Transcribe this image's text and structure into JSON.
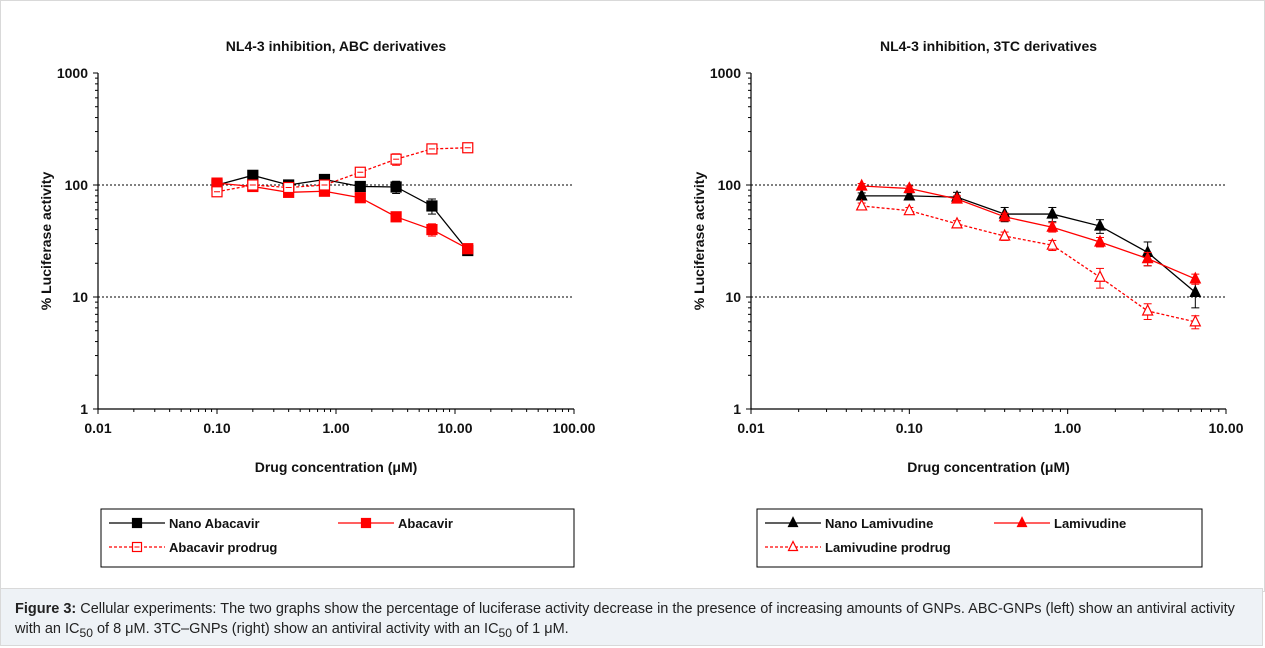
{
  "caption": {
    "label": "Figure 3:",
    "text1": " Cellular experiments: The two graphs show the percentage of luciferase activity decrease in the presence of increasing amounts of GNPs. ABC-GNPs (left) show an antiviral activity with an IC",
    "sub1": "50",
    "text2": " of 8 μM. 3TC–GNPs (right) show an antiviral activity with an IC",
    "sub2": "50",
    "text3": " of 1 μM."
  },
  "chart_data": [
    {
      "type": "line",
      "title": "NL4-3 inhibition, ABC derivatives",
      "xlabel": "Drug concentration (μM)",
      "ylabel": "% Luciferase activity",
      "xscale": "log",
      "yscale": "log",
      "xlim": [
        0.01,
        100
      ],
      "ylim": [
        1,
        1000
      ],
      "xticks": [
        "0.01",
        "0.10",
        "1.00",
        "10.00",
        "100.00"
      ],
      "yticks": [
        "1",
        "10",
        "100",
        "1000"
      ],
      "reference_lines_y": [
        10,
        100
      ],
      "legend_position": "bottom",
      "series": [
        {
          "name": "Nano Abacavir",
          "color": "#000000",
          "marker": "square-filled",
          "dashed": false,
          "x": [
            0.1,
            0.2,
            0.4,
            0.8,
            1.6,
            3.2,
            6.4,
            12.8
          ],
          "y": [
            100,
            122,
            100,
            112,
            97,
            96,
            65,
            26
          ],
          "err": [
            0,
            8,
            5,
            8,
            8,
            12,
            10,
            2
          ]
        },
        {
          "name": "Abacavir",
          "color": "#ff0000",
          "marker": "square-filled",
          "dashed": false,
          "x": [
            0.1,
            0.2,
            0.4,
            0.8,
            1.6,
            3.2,
            6.4,
            12.8
          ],
          "y": [
            104,
            97,
            86,
            88,
            77,
            52,
            40,
            27
          ],
          "err": [
            5,
            5,
            5,
            5,
            5,
            4,
            5,
            2
          ]
        },
        {
          "name": "Abacavir prodrug",
          "color": "#ff0000",
          "marker": "square-open",
          "dashed": true,
          "x": [
            0.1,
            0.2,
            0.4,
            0.8,
            1.6,
            3.2,
            6.4,
            12.8
          ],
          "y": [
            87,
            100,
            95,
            100,
            130,
            170,
            210,
            215
          ],
          "err": [
            5,
            5,
            5,
            5,
            10,
            20,
            15,
            15
          ]
        }
      ]
    },
    {
      "type": "line",
      "title": "NL4-3 inhibition, 3TC derivatives",
      "xlabel": "Drug concentration (μM)",
      "ylabel": "% Luciferase activity",
      "xscale": "log",
      "yscale": "log",
      "xlim": [
        0.01,
        10
      ],
      "ylim": [
        1,
        1000
      ],
      "xticks": [
        "0.01",
        "0.10",
        "1.00",
        "10.00"
      ],
      "yticks": [
        "1",
        "10",
        "100",
        "1000"
      ],
      "reference_lines_y": [
        10,
        100
      ],
      "legend_position": "bottom",
      "series": [
        {
          "name": "Nano Lamivudine",
          "color": "#000000",
          "marker": "triangle-filled",
          "dashed": false,
          "x": [
            0.05,
            0.1,
            0.2,
            0.4,
            0.8,
            1.6,
            3.2,
            6.4
          ],
          "y": [
            80,
            80,
            78,
            55,
            55,
            43,
            25,
            11
          ],
          "err": [
            5,
            5,
            8,
            8,
            8,
            6,
            6,
            3
          ]
        },
        {
          "name": "Lamivudine",
          "color": "#ff0000",
          "marker": "triangle-filled",
          "dashed": false,
          "x": [
            0.05,
            0.1,
            0.2,
            0.4,
            0.8,
            1.6,
            3.2,
            6.4
          ],
          "y": [
            98,
            93,
            75,
            52,
            42,
            31,
            22,
            14.5
          ],
          "err": [
            5,
            5,
            5,
            4,
            4,
            3,
            3,
            1.5
          ]
        },
        {
          "name": "Lamivudine prodrug",
          "color": "#ff0000",
          "marker": "triangle-open",
          "dashed": true,
          "x": [
            0.05,
            0.1,
            0.2,
            0.4,
            0.8,
            1.6,
            3.2,
            6.4
          ],
          "y": [
            65,
            59,
            45,
            35,
            29,
            15,
            7.5,
            6
          ],
          "err": [
            4,
            4,
            3,
            3,
            3,
            3,
            1.2,
            0.8
          ]
        }
      ]
    }
  ]
}
